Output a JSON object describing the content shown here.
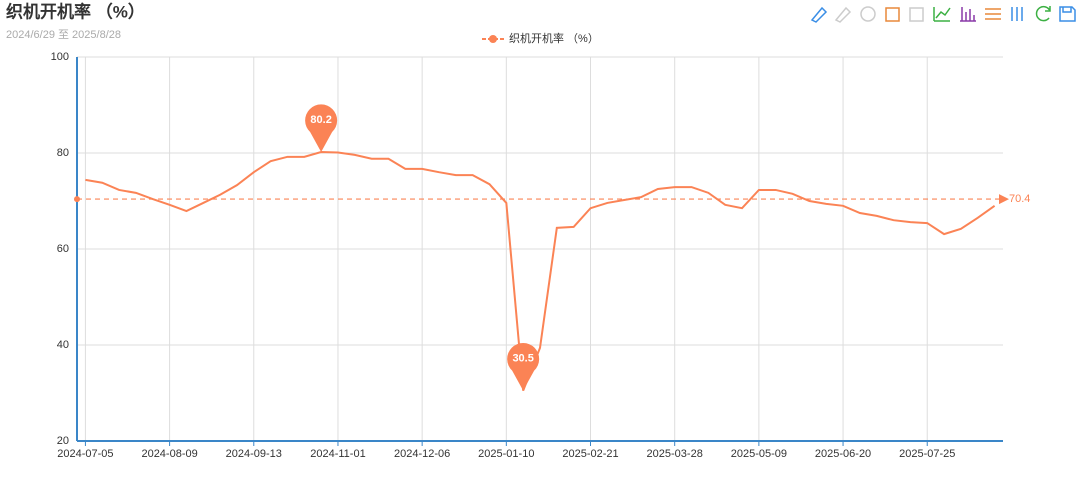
{
  "chart_data": {
    "type": "line",
    "title": "织机开机率 （%）",
    "subtitle": "2024/6/29 至 2025/8/28",
    "categories": [
      "2024-07-05",
      null,
      null,
      null,
      null,
      "2024-08-09",
      null,
      null,
      null,
      null,
      "2024-09-13",
      null,
      null,
      null,
      null,
      "2024-11-01",
      null,
      null,
      null,
      null,
      "2024-12-06",
      null,
      null,
      null,
      null,
      "2025-01-10",
      null,
      null,
      null,
      null,
      "2025-02-21",
      null,
      null,
      null,
      null,
      "2025-03-28",
      null,
      null,
      null,
      null,
      "2025-05-09",
      null,
      null,
      null,
      null,
      "2025-06-20",
      null,
      null,
      null,
      null,
      "2025-07-25",
      null,
      null,
      null,
      null
    ],
    "series": [
      {
        "name": "织机开机率 （%）",
        "color": "#fb8355",
        "values": [
          74.4,
          73.8,
          72.3,
          71.7,
          70.4,
          69.2,
          67.9,
          69.6,
          71.3,
          73.3,
          76.0,
          78.3,
          79.2,
          79.2,
          80.2,
          80.1,
          79.6,
          78.8,
          78.8,
          76.7,
          76.7,
          76.0,
          75.4,
          75.4,
          73.5,
          69.6,
          30.5,
          39.4,
          64.4,
          64.6,
          68.5,
          69.6,
          70.2,
          70.8,
          72.5,
          72.9,
          72.9,
          71.7,
          69.2,
          68.5,
          72.3,
          72.3,
          71.5,
          70.0,
          69.4,
          69.0,
          67.5,
          66.9,
          66.0,
          65.6,
          65.4,
          63.1,
          64.2,
          66.5,
          69.0
        ],
        "max_index": 14,
        "min_index": 26,
        "average": 70.4
      }
    ],
    "ylim": [
      20,
      100
    ],
    "yticks": [
      20,
      40,
      60,
      80,
      100
    ],
    "grid": true
  }
}
